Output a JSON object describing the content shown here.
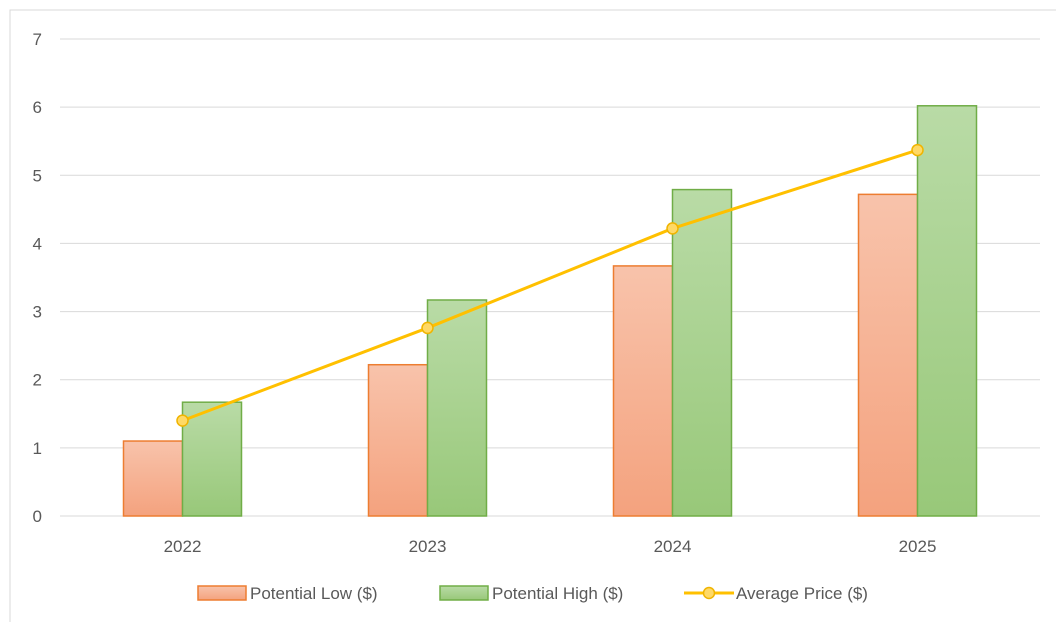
{
  "chart_data": {
    "type": "bar",
    "categories": [
      "2022",
      "2023",
      "2024",
      "2025"
    ],
    "ylim": [
      0,
      7
    ],
    "yticks": [
      0,
      1,
      2,
      3,
      4,
      5,
      6,
      7
    ],
    "grid": true,
    "legend_position": "bottom",
    "series": [
      {
        "name": "Potential Low ($)",
        "kind": "bar",
        "color": "#f4a582",
        "border": "#ed7d31",
        "values": [
          1.1,
          2.22,
          3.67,
          4.72
        ]
      },
      {
        "name": "Potential High ($)",
        "kind": "bar",
        "color": "#a9d18e",
        "border": "#70ad47",
        "values": [
          1.67,
          3.17,
          4.79,
          6.02
        ]
      },
      {
        "name": "Average Price ($)",
        "kind": "line",
        "color": "#ffc000",
        "values": [
          1.4,
          2.76,
          4.22,
          5.37
        ]
      }
    ]
  }
}
